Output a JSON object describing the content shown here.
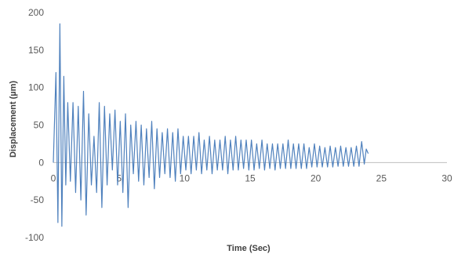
{
  "chart_data": {
    "type": "line",
    "title": "",
    "xlabel": "Time (Sec)",
    "ylabel": "Displacement (µm)",
    "xlim": [
      0,
      30
    ],
    "ylim": [
      -100,
      200
    ],
    "x_ticks": [
      0,
      5,
      10,
      15,
      20,
      25,
      30
    ],
    "y_ticks": [
      -100,
      -50,
      0,
      50,
      100,
      150,
      200
    ],
    "grid": false,
    "legend": "none",
    "line_color": "#4f81bd",
    "series": [
      {
        "x": [
          0.0,
          0.2,
          0.35,
          0.5,
          0.65,
          0.8,
          0.95,
          1.1,
          1.3,
          1.5,
          1.7,
          1.9,
          2.1,
          2.3,
          2.5,
          2.7,
          2.9,
          3.1,
          3.3,
          3.5,
          3.7,
          3.9,
          4.1,
          4.3,
          4.5,
          4.7,
          4.9,
          5.1,
          5.3,
          5.5,
          5.7,
          5.9,
          6.1,
          6.3,
          6.5,
          6.7,
          6.9,
          7.1,
          7.3,
          7.5,
          7.7,
          7.9,
          8.1,
          8.3,
          8.5,
          8.7,
          8.9,
          9.1,
          9.3,
          9.5,
          9.7,
          9.9,
          10.1,
          10.3,
          10.5,
          10.7,
          10.9,
          11.1,
          11.3,
          11.5,
          11.7,
          11.9,
          12.1,
          12.3,
          12.5,
          12.7,
          12.9,
          13.1,
          13.3,
          13.5,
          13.7,
          13.9,
          14.1,
          14.3,
          14.5,
          14.7,
          14.9,
          15.1,
          15.3,
          15.5,
          15.7,
          15.9,
          16.1,
          16.3,
          16.5,
          16.7,
          16.9,
          17.1,
          17.3,
          17.5,
          17.7,
          17.9,
          18.1,
          18.3,
          18.5,
          18.7,
          18.9,
          19.1,
          19.3,
          19.5,
          19.7,
          19.9,
          20.1,
          20.3,
          20.5,
          20.7,
          20.9,
          21.1,
          21.3,
          21.5,
          21.7,
          21.9,
          22.1,
          22.3,
          22.5,
          22.7,
          22.9,
          23.1,
          23.3,
          23.5,
          23.7,
          23.85,
          24.0
        ],
        "y": [
          0,
          120,
          -80,
          185,
          -85,
          115,
          -30,
          80,
          -25,
          80,
          -40,
          75,
          -50,
          95,
          -70,
          65,
          -30,
          35,
          -40,
          80,
          -60,
          75,
          -30,
          65,
          -10,
          70,
          -30,
          55,
          -40,
          65,
          -60,
          50,
          -15,
          55,
          -25,
          50,
          -30,
          45,
          -20,
          55,
          -35,
          45,
          -20,
          40,
          -15,
          45,
          -20,
          40,
          -25,
          45,
          -15,
          35,
          -10,
          35,
          -15,
          35,
          -10,
          40,
          -15,
          30,
          -10,
          35,
          -15,
          30,
          -10,
          30,
          -10,
          35,
          -15,
          30,
          -10,
          35,
          -10,
          30,
          -8,
          30,
          -10,
          30,
          -10,
          25,
          -8,
          30,
          -10,
          25,
          -8,
          25,
          -10,
          25,
          -8,
          25,
          -8,
          30,
          -8,
          25,
          -8,
          25,
          -8,
          25,
          -8,
          20,
          -6,
          25,
          -6,
          22,
          -6,
          20,
          -6,
          22,
          -6,
          20,
          -5,
          22,
          -5,
          20,
          -5,
          20,
          -5,
          22,
          -5,
          28,
          -2,
          18,
          12
        ]
      }
    ]
  }
}
